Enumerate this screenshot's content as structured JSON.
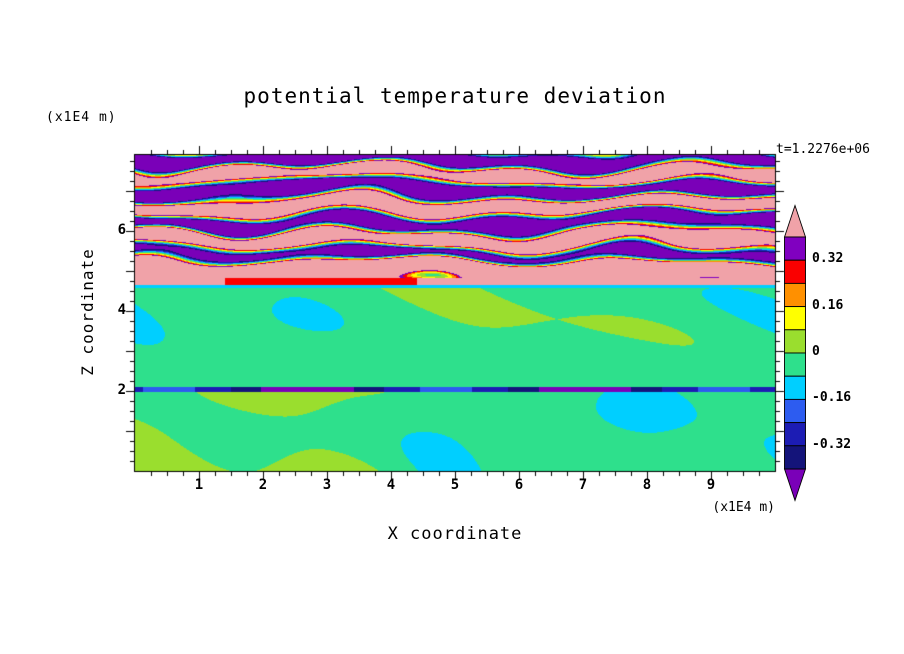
{
  "chart_data": {
    "type": "heatmap",
    "title": "potential temperature deviation",
    "time": "t=1.2276e+06",
    "xlabel": "X coordinate",
    "ylabel": "Z coordinate",
    "x_unit_label": "(x1E4 m)",
    "y_unit_label": "(x1E4 m)",
    "x_range": [
      0,
      10
    ],
    "y_range": [
      0,
      7.9
    ],
    "x_ticks": [
      "1",
      "2",
      "3",
      "4",
      "5",
      "6",
      "7",
      "8",
      "9"
    ],
    "y_ticks": [
      "2",
      "4",
      "6"
    ],
    "grid": false,
    "legend_position": "right-colorbar",
    "colorbar": {
      "labels": [
        "0.32",
        "0.16",
        "0",
        "-0.16",
        "-0.32"
      ],
      "levels": [
        0.4,
        0.32,
        0.24,
        0.16,
        0.08,
        0,
        -0.08,
        -0.16,
        -0.24,
        -0.32,
        -0.4
      ],
      "band_colors_top_to_bottom": [
        "#8000c0",
        "#fa0000",
        "#ff9000",
        "#ffff00",
        "#9ade2e",
        "#2ee08c",
        "#00cfff",
        "#2d5cf0",
        "#1c1cb4",
        "#14147a"
      ],
      "over_color": "#f0a2a8",
      "under_color": "#7a00b8"
    },
    "field_description": "Stratified-turbulence potential temperature deviation field: above z~4.8 (x1E4 m) alternating saturated positive (pink, >0.4) and negative (purple, <-0.4) wavy layers ~0.8 units thick with braided rainbow fringes at their boundaries; a thin cyan line (~-0.12) crosses the full width at z~4.6 with a red streak (~0.29) just above it between x~1.4 and 4.4; below z~4.6 the field is near zero: spring-green background (~-0.03) with weak positive green-yellow patches; a thin dark negative line (~-0.34) at z~2; stronger green-yellow plumes near the bottom boundary.",
    "generator": {
      "upper_z": 4.82,
      "stripe_period": 0.8,
      "stripe_amp": 0.9,
      "blob_amp": 0.38,
      "pink_bias": 1.3,
      "pink_decay": 2.5,
      "streak_z": [
        4.58,
        4.66
      ],
      "streak_x": [
        1.4,
        4.4
      ],
      "streak_v": 0.29,
      "streak_bg": 0.45,
      "line_v": -0.12,
      "mid_base": -0.032,
      "mid_amp": 0.05,
      "ripple_amp": 0.018,
      "dark_line_z": [
        1.97,
        2.1
      ],
      "dark_line_v": -0.34,
      "dark_line_mod": 0.12,
      "bottom_amp": 0.045,
      "clamp_low_max": 0.07
    }
  }
}
